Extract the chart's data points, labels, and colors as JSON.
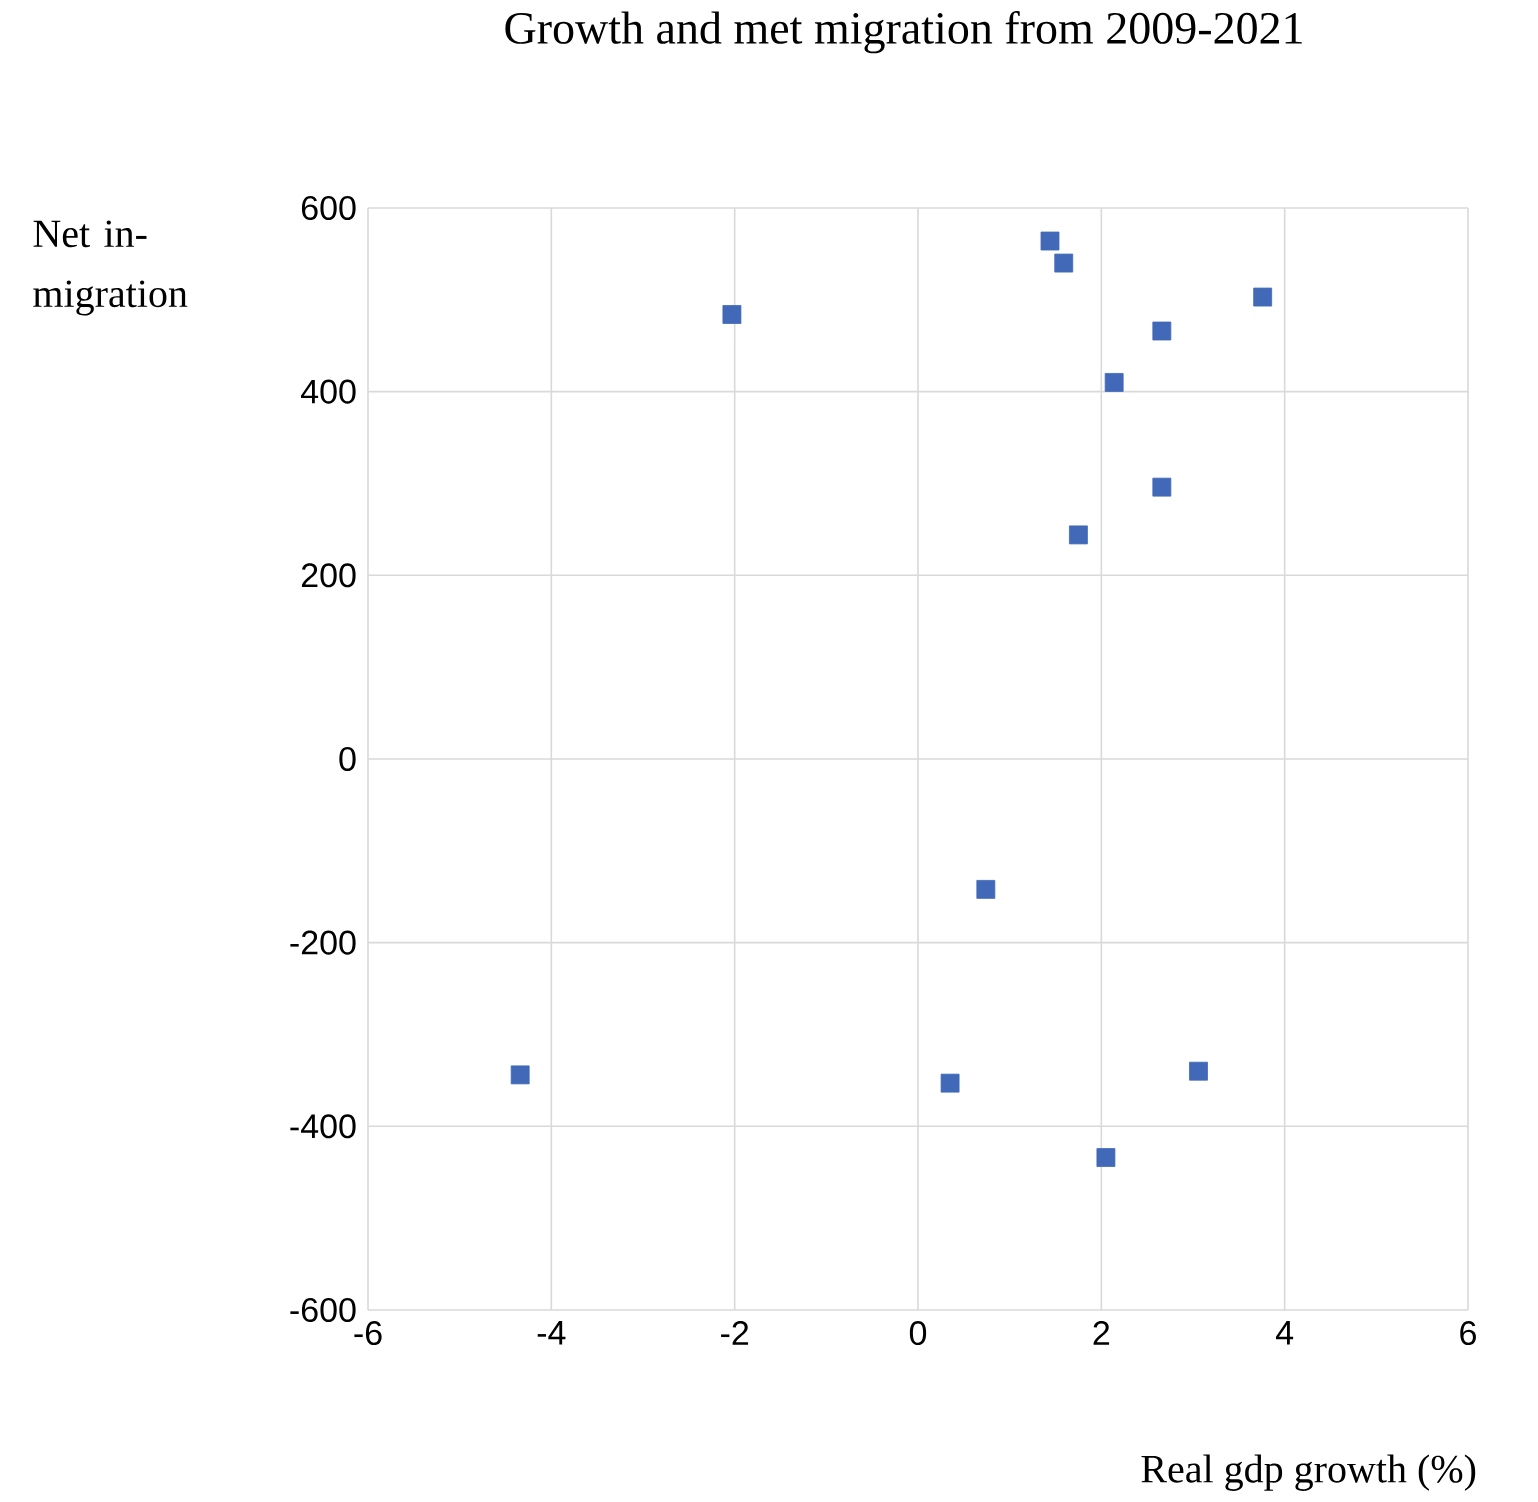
{
  "chart_data": {
    "type": "scatter",
    "title": "Growth and met migration from 2009-2021",
    "xlabel": "Real gdp growth (%)",
    "ylabel": "Net in-migration",
    "x": [
      1.44,
      1.59,
      -2.03,
      3.76,
      2.66,
      2.14,
      2.66,
      1.75,
      0.74,
      -4.34,
      0.35,
      3.06,
      2.05
    ],
    "values": [
      564,
      540,
      484,
      503,
      466,
      410,
      296,
      244,
      -142,
      -344,
      -353,
      -340,
      -434
    ],
    "color": "#4169b8",
    "marker": "square",
    "grid": true,
    "xlim": [
      -6,
      6
    ],
    "xticks": [
      -6,
      -4,
      -2,
      0,
      2,
      4,
      6
    ],
    "ylim": [
      -600,
      600
    ],
    "yticks": [
      -600,
      -400,
      -200,
      0,
      200,
      400,
      600
    ]
  }
}
